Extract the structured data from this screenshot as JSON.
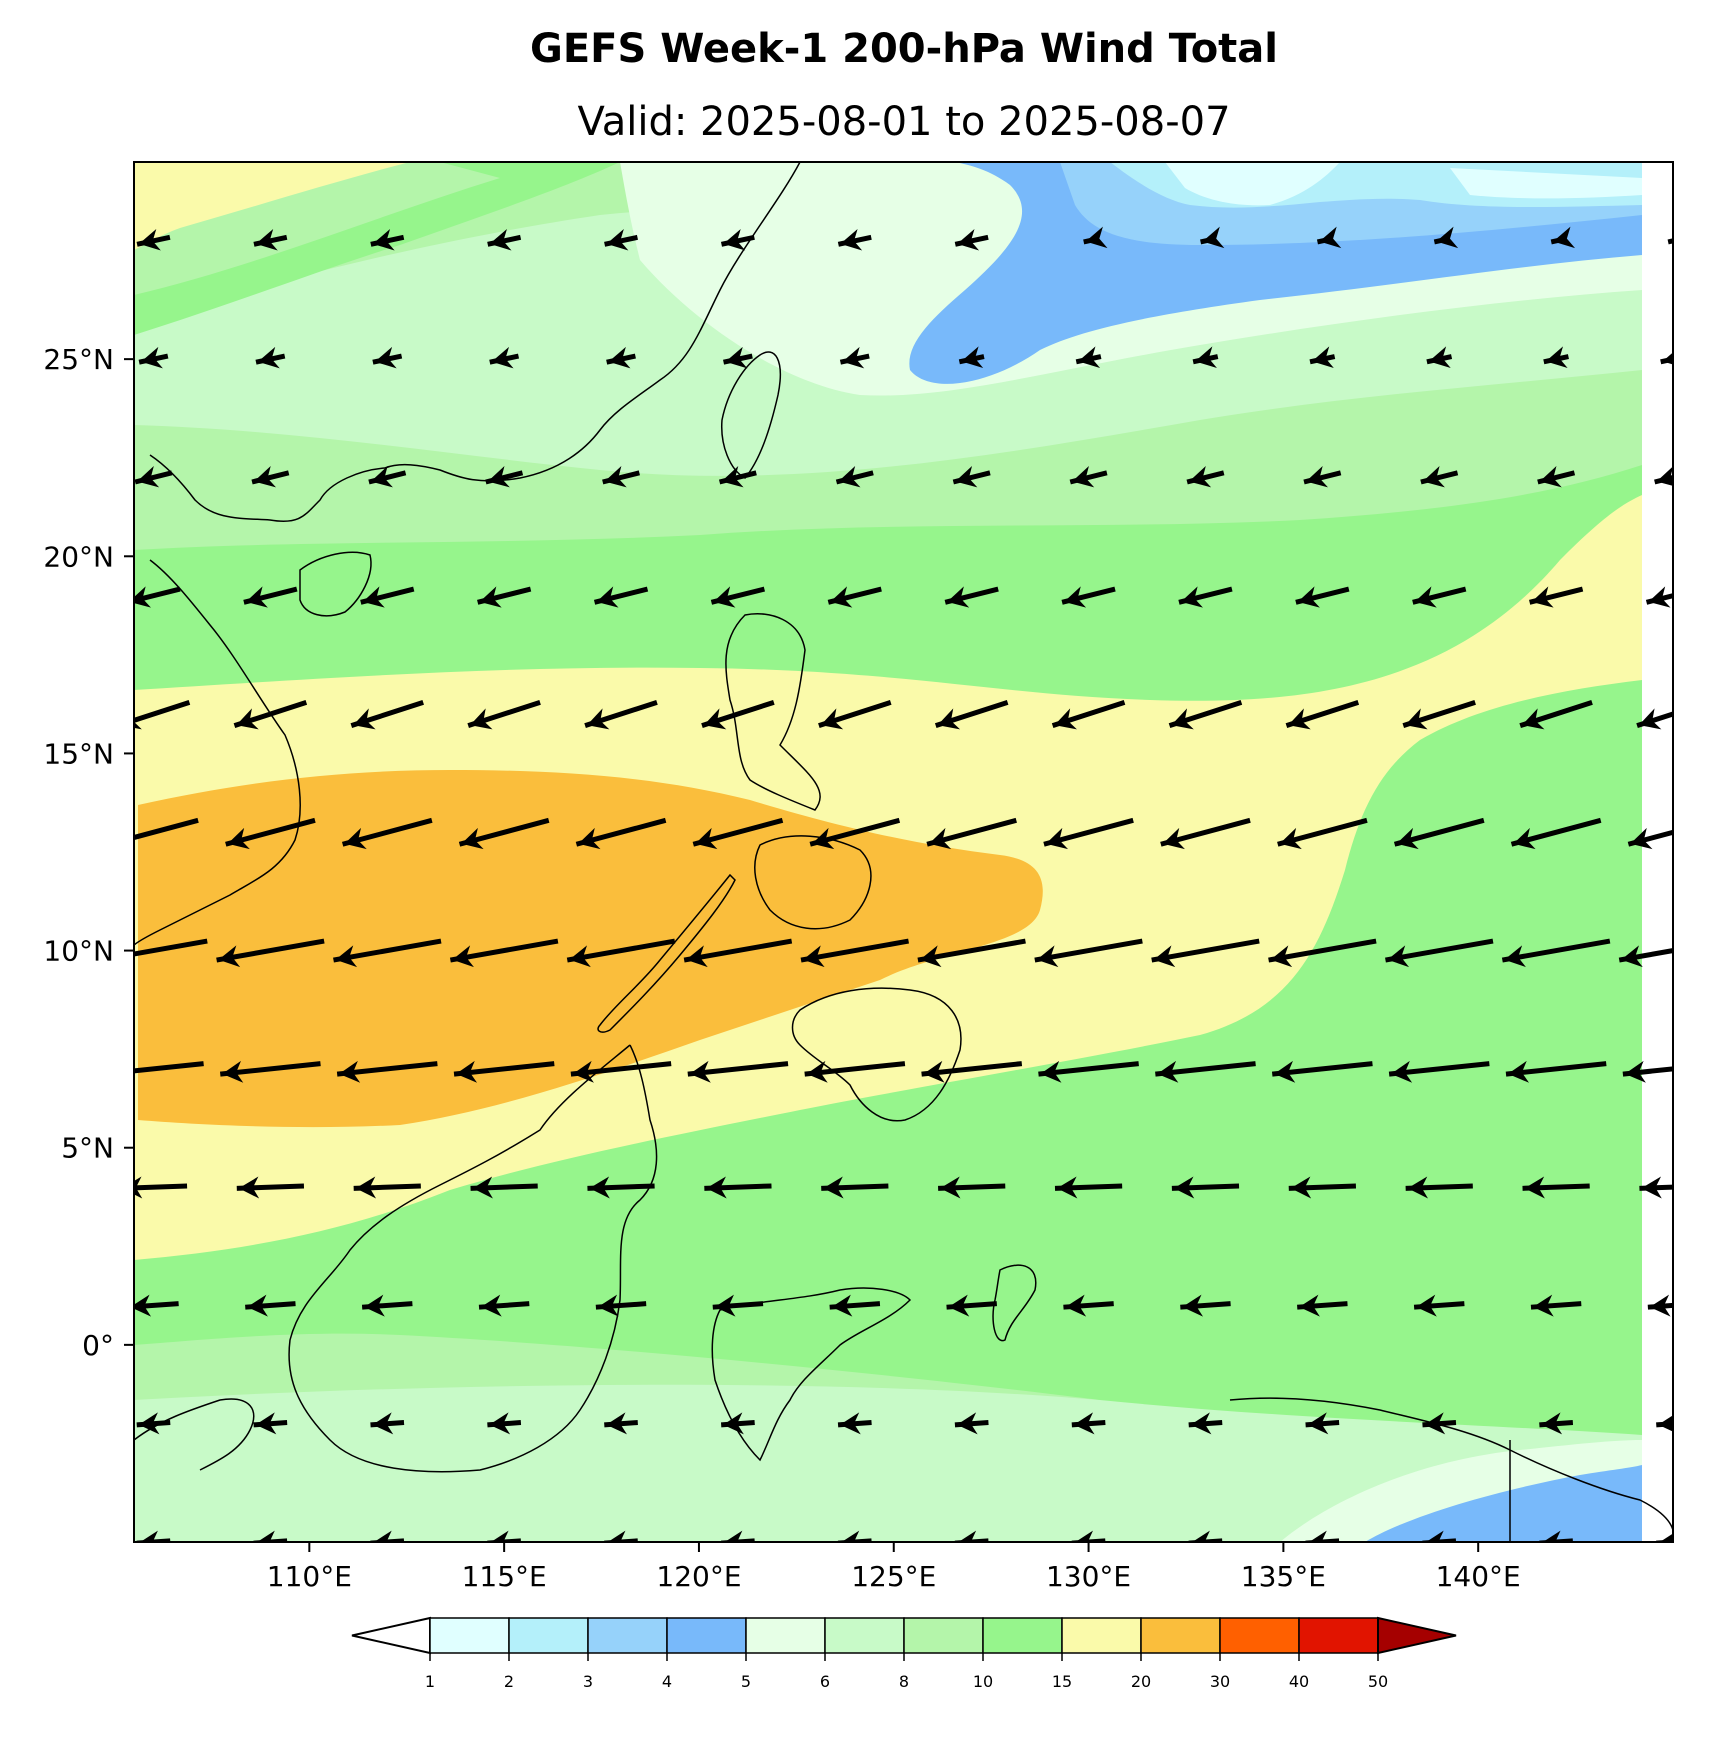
{
  "figure": {
    "title": "GEFS Week-1 200-hPa Wind Total",
    "subtitle": "Valid: 2025-08-01 to 2025-08-07"
  },
  "map": {
    "projection": "PlateCarree",
    "lon_range": [
      105.5,
      145.0
    ],
    "lat_range": [
      -5.0,
      30.0
    ],
    "lon_ticks": [
      {
        "value": 110,
        "label": "110°E"
      },
      {
        "value": 115,
        "label": "115°E"
      },
      {
        "value": 120,
        "label": "120°E"
      },
      {
        "value": 125,
        "label": "125°E"
      },
      {
        "value": 130,
        "label": "130°E"
      },
      {
        "value": 135,
        "label": "135°E"
      },
      {
        "value": 140,
        "label": "140°E"
      }
    ],
    "lat_ticks": [
      {
        "value": 25,
        "label": "25°N"
      },
      {
        "value": 20,
        "label": "20°N"
      },
      {
        "value": 15,
        "label": "15°N"
      },
      {
        "value": 10,
        "label": "10°N"
      },
      {
        "value": 5,
        "label": "5°N"
      },
      {
        "value": 0,
        "label": "0°"
      }
    ],
    "features": [
      "coastlines",
      "country borders",
      "province borders (Philippines)"
    ],
    "grid": false
  },
  "chart_data": {
    "type": "heatmap",
    "variable": "200-hPa wind speed with wind vectors",
    "title": "GEFS Week-1 200-hPa Wind Total",
    "subtitle": "Valid: 2025-08-01 to 2025-08-07",
    "colorbar": {
      "levels": [
        1,
        2,
        3,
        4,
        5,
        6,
        8,
        10,
        15,
        20,
        30,
        40,
        50
      ],
      "tick_labels": [
        "1",
        "2",
        "3",
        "4",
        "5",
        "6",
        "8",
        "10",
        "15",
        "20",
        "30",
        "40",
        "50"
      ],
      "colors": [
        "#e0ffff",
        "#b4f0fa",
        "#96d2fa",
        "#78b9fa",
        "#e6ffe6",
        "#c8fac8",
        "#b4f5aa",
        "#96f58c",
        "#fafaaa",
        "#fabe3c",
        "#ff6000",
        "#e11400",
        "#a50000"
      ],
      "under_color": "#ffffff",
      "over_color": "#a50000",
      "extend": "both"
    },
    "regions": [
      {
        "range": "15-20",
        "area": "belt along 6-16N from South China Sea across the Philippines to 145E, and NW corner near 28N 105E"
      },
      {
        "range": "20-30",
        "area": "jet core 5.5-13.5N from 105E to 128E (westerly-directed easterly jet)"
      },
      {
        "range": "10-15",
        "area": "bands 16-22N and 0-5N; eastern region 5-15N east of 132E"
      },
      {
        "range": "3-5",
        "area": "NE corner near 24-30N, 126-145E and SE corner near -5N 138-145E"
      },
      {
        "range": "1-3",
        "area": "isolated minimum near 28-30N, 130-145E"
      }
    ],
    "wind_vectors": {
      "direction": "predominantly easterly / east-northeasterly (arrows point west to west-southwest)",
      "strongest_latitudes": [
        7,
        10,
        13
      ],
      "weakest_area": "28N, 130-145E"
    }
  }
}
